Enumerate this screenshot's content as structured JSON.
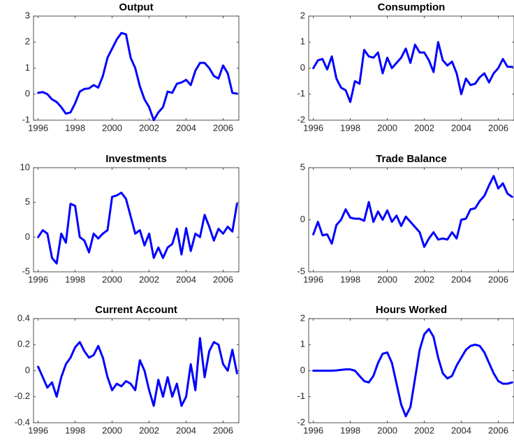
{
  "chart_data": [
    {
      "type": "line",
      "title": "Output",
      "x": [
        1996,
        1996.25,
        1996.5,
        1996.75,
        1997,
        1997.25,
        1997.5,
        1997.75,
        1998,
        1998.25,
        1998.5,
        1998.75,
        1999,
        1999.25,
        1999.5,
        1999.75,
        2000,
        2000.25,
        2000.5,
        2000.75,
        2001,
        2001.25,
        2001.5,
        2001.75,
        2002,
        2002.25,
        2002.5,
        2002.75,
        2003,
        2003.25,
        2003.5,
        2003.75,
        2004,
        2004.25,
        2004.5,
        2004.75,
        2005,
        2005.25,
        2005.5,
        2005.75,
        2006,
        2006.25,
        2006.5,
        2006.75
      ],
      "series": [
        {
          "color": "#0000ff",
          "values": [
            0.05,
            0.08,
            0,
            -0.2,
            -0.3,
            -0.5,
            -0.75,
            -0.7,
            -0.35,
            0.1,
            0.2,
            0.22,
            0.35,
            0.25,
            0.7,
            1.4,
            1.75,
            2.1,
            2.35,
            2.3,
            1.4,
            1.0,
            0.3,
            -0.2,
            -0.5,
            -1.0,
            -0.7,
            -0.5,
            0.1,
            0.05,
            0.4,
            0.45,
            0.55,
            0.35,
            0.9,
            1.2,
            1.2,
            1.0,
            0.7,
            0.6,
            1.1,
            0.8,
            0.05,
            0.02
          ]
        }
      ],
      "xlim": [
        1995.75,
        2006.85
      ],
      "xticks": [
        1996,
        1998,
        2000,
        2002,
        2004,
        2006
      ],
      "ylim": [
        -1,
        3
      ],
      "yticks": [
        -1,
        0,
        1,
        2,
        3
      ]
    },
    {
      "type": "line",
      "title": "Consumption",
      "x": [
        1996,
        1996.25,
        1996.5,
        1996.75,
        1997,
        1997.25,
        1997.5,
        1997.75,
        1998,
        1998.25,
        1998.5,
        1998.75,
        1999,
        1999.25,
        1999.5,
        1999.75,
        2000,
        2000.25,
        2000.5,
        2000.75,
        2001,
        2001.25,
        2001.5,
        2001.75,
        2002,
        2002.25,
        2002.5,
        2002.75,
        2003,
        2003.25,
        2003.5,
        2003.75,
        2004,
        2004.25,
        2004.5,
        2004.75,
        2005,
        2005.25,
        2005.5,
        2005.75,
        2006,
        2006.25,
        2006.5,
        2006.75
      ],
      "series": [
        {
          "color": "#0000ff",
          "values": [
            0,
            0.3,
            0.35,
            -0.05,
            0.45,
            -0.4,
            -0.75,
            -0.85,
            -1.3,
            -0.5,
            -0.6,
            0.7,
            0.45,
            0.4,
            0.6,
            -0.2,
            0.4,
            0,
            0.2,
            0.4,
            0.75,
            0.2,
            0.9,
            0.6,
            0.6,
            0.3,
            -0.15,
            1.0,
            0.3,
            0.1,
            0.25,
            -0.2,
            -1.0,
            -0.4,
            -0.65,
            -0.6,
            -0.35,
            -0.2,
            -0.55,
            -0.2,
            0,
            0.35,
            0.05,
            0.05
          ]
        }
      ],
      "xlim": [
        1995.75,
        2006.85
      ],
      "xticks": [
        1996,
        1998,
        2000,
        2002,
        2004,
        2006
      ],
      "ylim": [
        -2,
        2
      ],
      "yticks": [
        -2,
        -1,
        0,
        1,
        2
      ]
    },
    {
      "type": "line",
      "title": "Investments",
      "x": [
        1996,
        1996.25,
        1996.5,
        1996.75,
        1997,
        1997.25,
        1997.5,
        1997.75,
        1998,
        1998.25,
        1998.5,
        1998.75,
        1999,
        1999.25,
        1999.5,
        1999.75,
        2000,
        2000.25,
        2000.5,
        2000.75,
        2001,
        2001.25,
        2001.5,
        2001.75,
        2002,
        2002.25,
        2002.5,
        2002.75,
        2003,
        2003.25,
        2003.5,
        2003.75,
        2004,
        2004.25,
        2004.5,
        2004.75,
        2005,
        2005.25,
        2005.5,
        2005.75,
        2006,
        2006.25,
        2006.5,
        2006.75
      ],
      "series": [
        {
          "color": "#0000ff",
          "values": [
            0,
            1,
            0.5,
            -3,
            -3.8,
            0.5,
            -0.8,
            4.8,
            4.5,
            0,
            -0.5,
            -2.2,
            0.5,
            -0.2,
            0.5,
            1.0,
            5.8,
            6,
            6.4,
            5.5,
            3,
            0.5,
            1,
            -1.2,
            0.5,
            -3,
            -1.5,
            -3,
            -1.5,
            -1,
            1.2,
            -2.5,
            1.3,
            -2,
            0.5,
            0,
            3.2,
            1.5,
            -0.5,
            1.2,
            0.5,
            1.5,
            0.8,
            4.8
          ]
        }
      ],
      "xlim": [
        1995.75,
        2006.85
      ],
      "xticks": [
        1996,
        1998,
        2000,
        2002,
        2004,
        2006
      ],
      "ylim": [
        -5,
        10
      ],
      "yticks": [
        -5,
        0,
        5,
        10
      ]
    },
    {
      "type": "line",
      "title": "Trade Balance",
      "x": [
        1996,
        1996.25,
        1996.5,
        1996.75,
        1997,
        1997.25,
        1997.5,
        1997.75,
        1998,
        1998.25,
        1998.5,
        1998.75,
        1999,
        1999.25,
        1999.5,
        1999.75,
        2000,
        2000.25,
        2000.5,
        2000.75,
        2001,
        2001.25,
        2001.5,
        2001.75,
        2002,
        2002.25,
        2002.5,
        2002.75,
        2003,
        2003.25,
        2003.5,
        2003.75,
        2004,
        2004.25,
        2004.5,
        2004.75,
        2005,
        2005.25,
        2005.5,
        2005.75,
        2006,
        2006.25,
        2006.5,
        2006.75
      ],
      "series": [
        {
          "color": "#0000ff",
          "values": [
            -1.4,
            -0.2,
            -1.5,
            -1.4,
            -2.3,
            -0.5,
            0,
            1.0,
            0.2,
            0.1,
            0.1,
            -0.1,
            1.7,
            -0.2,
            0.8,
            0,
            0.9,
            -0.2,
            0.4,
            -0.6,
            0.3,
            -0.2,
            -0.7,
            -1.2,
            -2.6,
            -1.8,
            -1.2,
            -1.9,
            -1.8,
            -1.9,
            -1.2,
            -1.8,
            0,
            0.1,
            1,
            1.1,
            1.8,
            2.3,
            3.3,
            4.2,
            3.0,
            3.5,
            2.5,
            2.2
          ]
        }
      ],
      "xlim": [
        1995.75,
        2006.85
      ],
      "xticks": [
        1996,
        1998,
        2000,
        2002,
        2004,
        2006
      ],
      "ylim": [
        -5,
        5
      ],
      "yticks": [
        -5,
        0,
        5
      ]
    },
    {
      "type": "line",
      "title": "Current Account",
      "x": [
        1996,
        1996.25,
        1996.5,
        1996.75,
        1997,
        1997.25,
        1997.5,
        1997.75,
        1998,
        1998.25,
        1998.5,
        1998.75,
        1999,
        1999.25,
        1999.5,
        1999.75,
        2000,
        2000.25,
        2000.5,
        2000.75,
        2001,
        2001.25,
        2001.5,
        2001.75,
        2002,
        2002.25,
        2002.5,
        2002.75,
        2003,
        2003.25,
        2003.5,
        2003.75,
        2004,
        2004.25,
        2004.5,
        2004.75,
        2005,
        2005.25,
        2005.5,
        2005.75,
        2006,
        2006.25,
        2006.5,
        2006.75
      ],
      "series": [
        {
          "color": "#0000ff",
          "values": [
            0.03,
            -0.05,
            -0.13,
            -0.09,
            -0.2,
            -0.05,
            0.05,
            0.1,
            0.18,
            0.22,
            0.15,
            0.1,
            0.12,
            0.19,
            0.1,
            -0.05,
            -0.15,
            -0.1,
            -0.12,
            -0.08,
            -0.1,
            -0.15,
            0.08,
            0,
            -0.15,
            -0.27,
            -0.07,
            -0.2,
            -0.05,
            -0.2,
            -0.1,
            -0.27,
            -0.2,
            0.05,
            -0.15,
            0.25,
            -0.05,
            0.15,
            0.22,
            0.2,
            0.05,
            0,
            0.16,
            -0.02
          ]
        }
      ],
      "xlim": [
        1995.75,
        2006.85
      ],
      "xticks": [
        1996,
        1998,
        2000,
        2002,
        2004,
        2006
      ],
      "ylim": [
        -0.4,
        0.4
      ],
      "yticks": [
        -0.4,
        -0.2,
        0,
        0.2,
        0.4
      ]
    },
    {
      "type": "line",
      "title": "Hours Worked",
      "x": [
        1996,
        1996.25,
        1996.5,
        1996.75,
        1997,
        1997.25,
        1997.5,
        1997.75,
        1998,
        1998.25,
        1998.5,
        1998.75,
        1999,
        1999.25,
        1999.5,
        1999.75,
        2000,
        2000.25,
        2000.5,
        2000.75,
        2001,
        2001.25,
        2001.5,
        2001.75,
        2002,
        2002.25,
        2002.5,
        2002.75,
        2003,
        2003.25,
        2003.5,
        2003.75,
        2004,
        2004.25,
        2004.5,
        2004.75,
        2005,
        2005.25,
        2005.5,
        2005.75,
        2006,
        2006.25,
        2006.5,
        2006.75
      ],
      "series": [
        {
          "color": "#0000ff",
          "values": [
            0,
            0,
            0,
            0,
            0,
            0.01,
            0.03,
            0.05,
            0.05,
            0,
            -0.2,
            -0.4,
            -0.45,
            -0.2,
            0.3,
            0.65,
            0.7,
            0.3,
            -0.5,
            -1.3,
            -1.75,
            -1.4,
            -0.3,
            0.8,
            1.4,
            1.6,
            1.3,
            0.5,
            -0.1,
            -0.3,
            -0.2,
            0.2,
            0.5,
            0.8,
            0.95,
            1.0,
            0.95,
            0.7,
            0.3,
            -0.1,
            -0.4,
            -0.5,
            -0.5,
            -0.45
          ]
        }
      ],
      "xlim": [
        1995.75,
        2006.85
      ],
      "xticks": [
        1996,
        1998,
        2000,
        2002,
        2004,
        2006
      ],
      "ylim": [
        -2,
        2
      ],
      "yticks": [
        -2,
        -1,
        0,
        1,
        2
      ]
    }
  ]
}
